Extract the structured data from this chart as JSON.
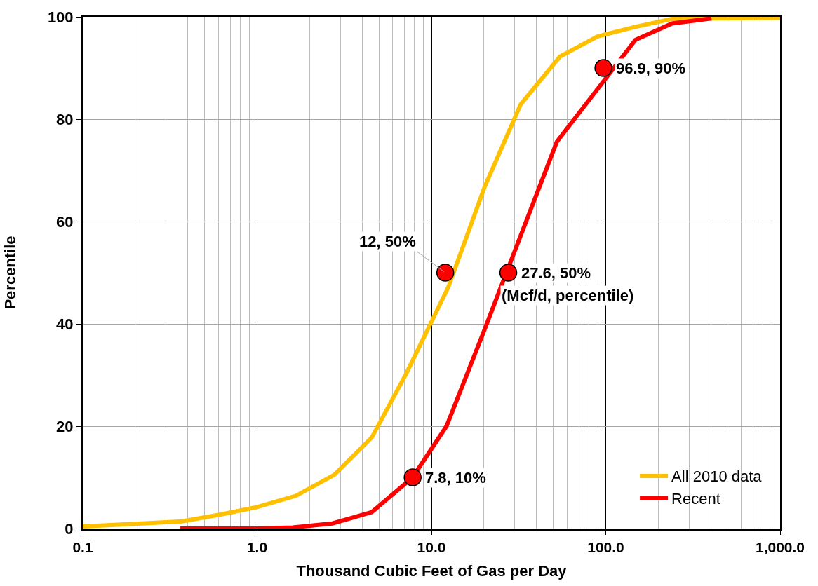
{
  "chart_data": {
    "type": "line",
    "xlabel": "Thousand Cubic Feet of Gas per Day",
    "ylabel": "Percentile",
    "log": "x",
    "grid": true,
    "legend": "bottom right",
    "marker": "none",
    "line_style": "solid",
    "xlim": [
      0.1,
      1000
    ],
    "xticks": [
      0.1,
      {
        "value": 1,
        "label": "1.0"
      },
      {
        "value": 10,
        "label": "10.0"
      },
      {
        "value": 100,
        "label": "100.0"
      },
      {
        "value": 1000,
        "label": "1,000.0"
      }
    ],
    "ylim": [
      0,
      100
    ],
    "yticks": [
      0,
      20,
      40,
      60,
      80,
      100
    ],
    "series": [
      {
        "name": "All 2010 data",
        "color": "#ffc000",
        "x": [
          0.1,
          0.37,
          0.61,
          1.0,
          1.67,
          2.77,
          4.55,
          7.2,
          12.5,
          20.2,
          32.5,
          54.5,
          90,
          146,
          240,
          1000
        ],
        "values": [
          0.4,
          1.4,
          2.7,
          4.2,
          6.4,
          10.5,
          17.8,
          30.4,
          47.2,
          66.8,
          82.9,
          92.2,
          96.2,
          98,
          99.6,
          99.8
        ]
      },
      {
        "name": "Recent",
        "color": "#ff0000",
        "x": [
          0.36,
          1.0,
          1.6,
          2.7,
          4.55,
          7.8,
          12.2,
          19.6,
          52.4,
          148,
          240,
          404
        ],
        "values": [
          0,
          0,
          0.2,
          1.0,
          3.2,
          10,
          20,
          37.8,
          75.6,
          95.5,
          98.7,
          99.7
        ]
      },
      {
        "type": "scatter",
        "color": "#ff0000",
        "marker": "circle",
        "x": [
          7.8,
          12,
          27.6,
          96.9
        ],
        "values": [
          10,
          50,
          50,
          90
        ]
      }
    ],
    "annotations": [
      {
        "text": "7.8, 10%",
        "x": 7.8,
        "y": 10
      },
      {
        "text": "12, 50%",
        "x": 12,
        "y": 50
      },
      {
        "text": "27.6, 50%",
        "x": 27.6,
        "y": 50
      },
      {
        "text": "96.9, 90%",
        "x": 96.9,
        "y": 90
      },
      "(Mcf/d, percentile)"
    ]
  }
}
